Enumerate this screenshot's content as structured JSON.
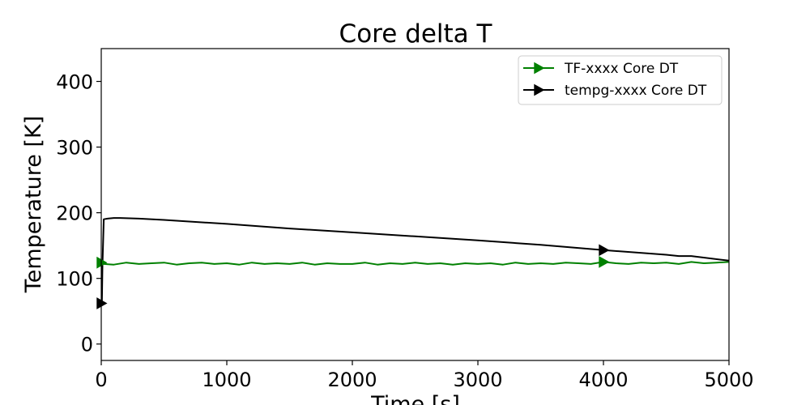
{
  "chart_data": {
    "type": "line",
    "title": "Core delta T",
    "xlabel": "Time [s]",
    "ylabel": "Temperature [K]",
    "xlim": [
      0,
      5000
    ],
    "ylim": [
      -25,
      450
    ],
    "xticks": [
      0,
      1000,
      2000,
      3000,
      4000,
      5000
    ],
    "yticks": [
      0,
      100,
      200,
      300,
      400
    ],
    "grid": false,
    "legend_position": "top-right",
    "series": [
      {
        "name": "TF-xxxx Core DT",
        "color": "#008000",
        "marker": "right-triangle",
        "x": [
          0,
          20,
          100,
          200,
          300,
          400,
          500,
          600,
          700,
          800,
          900,
          1000,
          1100,
          1200,
          1300,
          1400,
          1500,
          1600,
          1700,
          1800,
          1900,
          2000,
          2100,
          2200,
          2300,
          2400,
          2500,
          2600,
          2700,
          2800,
          2900,
          3000,
          3100,
          3200,
          3300,
          3400,
          3500,
          3600,
          3700,
          3800,
          3900,
          4000,
          4100,
          4200,
          4300,
          4400,
          4500,
          4600,
          4700,
          4800,
          4900,
          5000
        ],
        "values": [
          124,
          122,
          121,
          124,
          122,
          123,
          124,
          121,
          123,
          124,
          122,
          123,
          121,
          124,
          122,
          123,
          122,
          124,
          121,
          123,
          122,
          122,
          124,
          121,
          123,
          122,
          124,
          122,
          123,
          121,
          123,
          122,
          123,
          121,
          124,
          122,
          123,
          122,
          124,
          123,
          122,
          125,
          123,
          122,
          124,
          123,
          124,
          122,
          125,
          123,
          124,
          125
        ]
      },
      {
        "name": "tempg-xxxx Core DT",
        "color": "#000000",
        "marker": "right-triangle",
        "x": [
          0,
          5,
          10,
          20,
          50,
          100,
          150,
          300,
          500,
          1000,
          1500,
          2000,
          2500,
          3000,
          3500,
          4000,
          4500,
          4600,
          4700,
          5000
        ],
        "values": [
          62,
          62,
          120,
          190,
          191,
          192,
          192,
          191,
          189,
          183,
          176,
          170,
          164,
          158,
          151,
          143,
          136,
          134,
          134,
          127
        ]
      }
    ]
  }
}
